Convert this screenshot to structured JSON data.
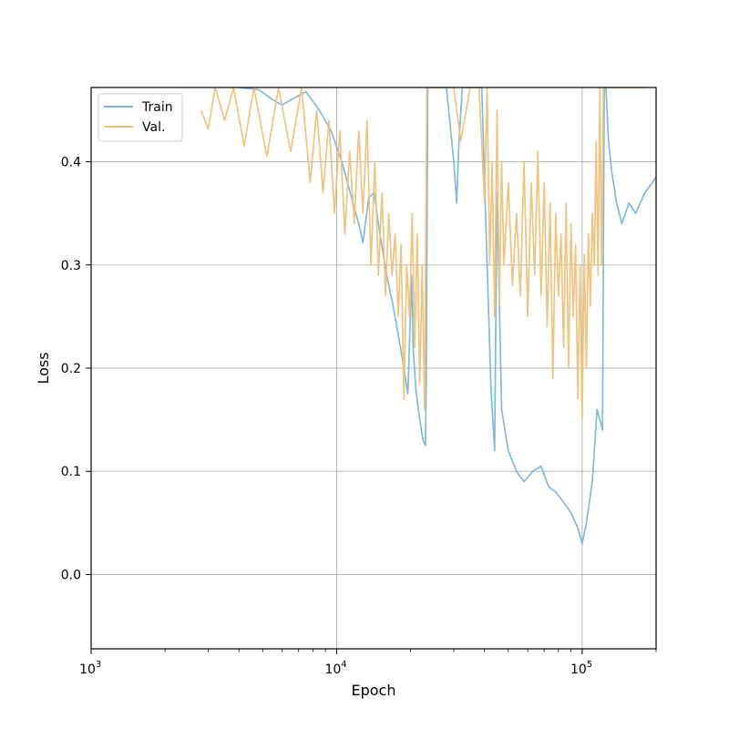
{
  "chart_data": {
    "type": "line",
    "title": "",
    "xlabel": "Epoch",
    "ylabel": "Loss",
    "xscale": "log",
    "xlim": [
      1000,
      200000
    ],
    "ylim": [
      -0.072,
      0.472
    ],
    "grid": true,
    "legend_position": "upper-left",
    "x_ticks": [
      {
        "value": 1000,
        "label": "10",
        "exp": "3"
      },
      {
        "value": 10000,
        "label": "10",
        "exp": "4"
      },
      {
        "value": 100000,
        "label": "10",
        "exp": "5"
      }
    ],
    "y_ticks": [
      {
        "value": 0.0,
        "label": "0.0"
      },
      {
        "value": 0.1,
        "label": "0.1"
      },
      {
        "value": 0.2,
        "label": "0.2"
      },
      {
        "value": 0.3,
        "label": "0.3"
      },
      {
        "value": 0.4,
        "label": "0.4"
      }
    ],
    "series": [
      {
        "name": "Train",
        "color": "#7ab6d8",
        "x": [
          4000,
          4800,
          5500,
          6000,
          6500,
          7500,
          8500,
          9500,
          10500,
          11500,
          12300,
          12800,
          13500,
          14200,
          15000,
          16000,
          17000,
          18500,
          19500,
          20200,
          20500,
          21000,
          21800,
          22500,
          23000,
          23200,
          23500,
          25000,
          28000,
          30000,
          30800,
          31500,
          32500,
          33500,
          35000,
          37000,
          39000,
          41000,
          42500,
          43500,
          44000,
          45000,
          47000,
          50000,
          54000,
          58000,
          63000,
          68000,
          73000,
          78000,
          84000,
          90000,
          96000,
          100000,
          104000,
          110000,
          115000,
          118000,
          121000,
          123000,
          124000,
          125000,
          128000,
          132000,
          138000,
          145000,
          155000,
          165000,
          180000,
          200000
        ],
        "y": [
          0.472,
          0.47,
          0.46,
          0.455,
          0.46,
          0.468,
          0.45,
          0.43,
          0.4,
          0.365,
          0.34,
          0.322,
          0.365,
          0.37,
          0.33,
          0.29,
          0.26,
          0.21,
          0.175,
          0.29,
          0.22,
          0.18,
          0.15,
          0.13,
          0.125,
          0.2,
          0.472,
          0.472,
          0.472,
          0.4,
          0.36,
          0.42,
          0.472,
          0.472,
          0.472,
          0.472,
          0.472,
          0.3,
          0.18,
          0.14,
          0.12,
          0.37,
          0.16,
          0.12,
          0.1,
          0.09,
          0.1,
          0.105,
          0.085,
          0.08,
          0.07,
          0.06,
          0.045,
          0.03,
          0.05,
          0.09,
          0.16,
          0.15,
          0.14,
          0.472,
          0.472,
          0.472,
          0.42,
          0.39,
          0.36,
          0.34,
          0.36,
          0.35,
          0.37,
          0.385
        ]
      },
      {
        "name": "Val.",
        "color": "#f0c07a",
        "x": [
          2800,
          3000,
          3200,
          3500,
          3800,
          4200,
          4600,
          5200,
          5800,
          6500,
          7200,
          7800,
          8300,
          8800,
          9300,
          9800,
          10300,
          10800,
          11300,
          11800,
          12300,
          12800,
          13300,
          13800,
          14300,
          14800,
          15300,
          15800,
          16300,
          16800,
          17300,
          17800,
          18300,
          18800,
          19300,
          19800,
          20300,
          20800,
          21300,
          21800,
          22300,
          22800,
          23300,
          24000,
          30000,
          32000,
          35000,
          38000,
          40000,
          41000,
          42000,
          43000,
          44000,
          45000,
          46000,
          47000,
          48000,
          50000,
          52000,
          54000,
          56000,
          58000,
          60000,
          62000,
          64000,
          66000,
          68000,
          70000,
          72000,
          74000,
          76000,
          78000,
          80000,
          82000,
          84000,
          86000,
          88000,
          90000,
          92000,
          94000,
          96000,
          98000,
          100000,
          102000,
          104000,
          106000,
          108000,
          110000,
          112000,
          114000,
          116000,
          118000,
          120000,
          122000,
          124000,
          126000,
          140000,
          160000,
          180000
        ],
        "y": [
          0.45,
          0.432,
          0.472,
          0.44,
          0.472,
          0.415,
          0.472,
          0.405,
          0.472,
          0.41,
          0.472,
          0.38,
          0.45,
          0.37,
          0.44,
          0.35,
          0.43,
          0.33,
          0.41,
          0.34,
          0.43,
          0.35,
          0.44,
          0.3,
          0.4,
          0.29,
          0.37,
          0.27,
          0.35,
          0.29,
          0.33,
          0.25,
          0.32,
          0.17,
          0.3,
          0.25,
          0.35,
          0.22,
          0.33,
          0.185,
          0.3,
          0.16,
          0.472,
          0.472,
          0.472,
          0.42,
          0.472,
          0.472,
          0.36,
          0.472,
          0.3,
          0.4,
          0.25,
          0.45,
          0.26,
          0.4,
          0.3,
          0.38,
          0.28,
          0.35,
          0.27,
          0.4,
          0.25,
          0.38,
          0.29,
          0.41,
          0.27,
          0.38,
          0.24,
          0.36,
          0.19,
          0.35,
          0.27,
          0.33,
          0.22,
          0.36,
          0.2,
          0.34,
          0.25,
          0.32,
          0.17,
          0.3,
          0.15,
          0.31,
          0.2,
          0.33,
          0.26,
          0.35,
          0.3,
          0.42,
          0.29,
          0.472,
          0.3,
          0.472,
          0.472,
          0.472,
          0.472,
          0.472,
          0.472
        ]
      }
    ]
  }
}
